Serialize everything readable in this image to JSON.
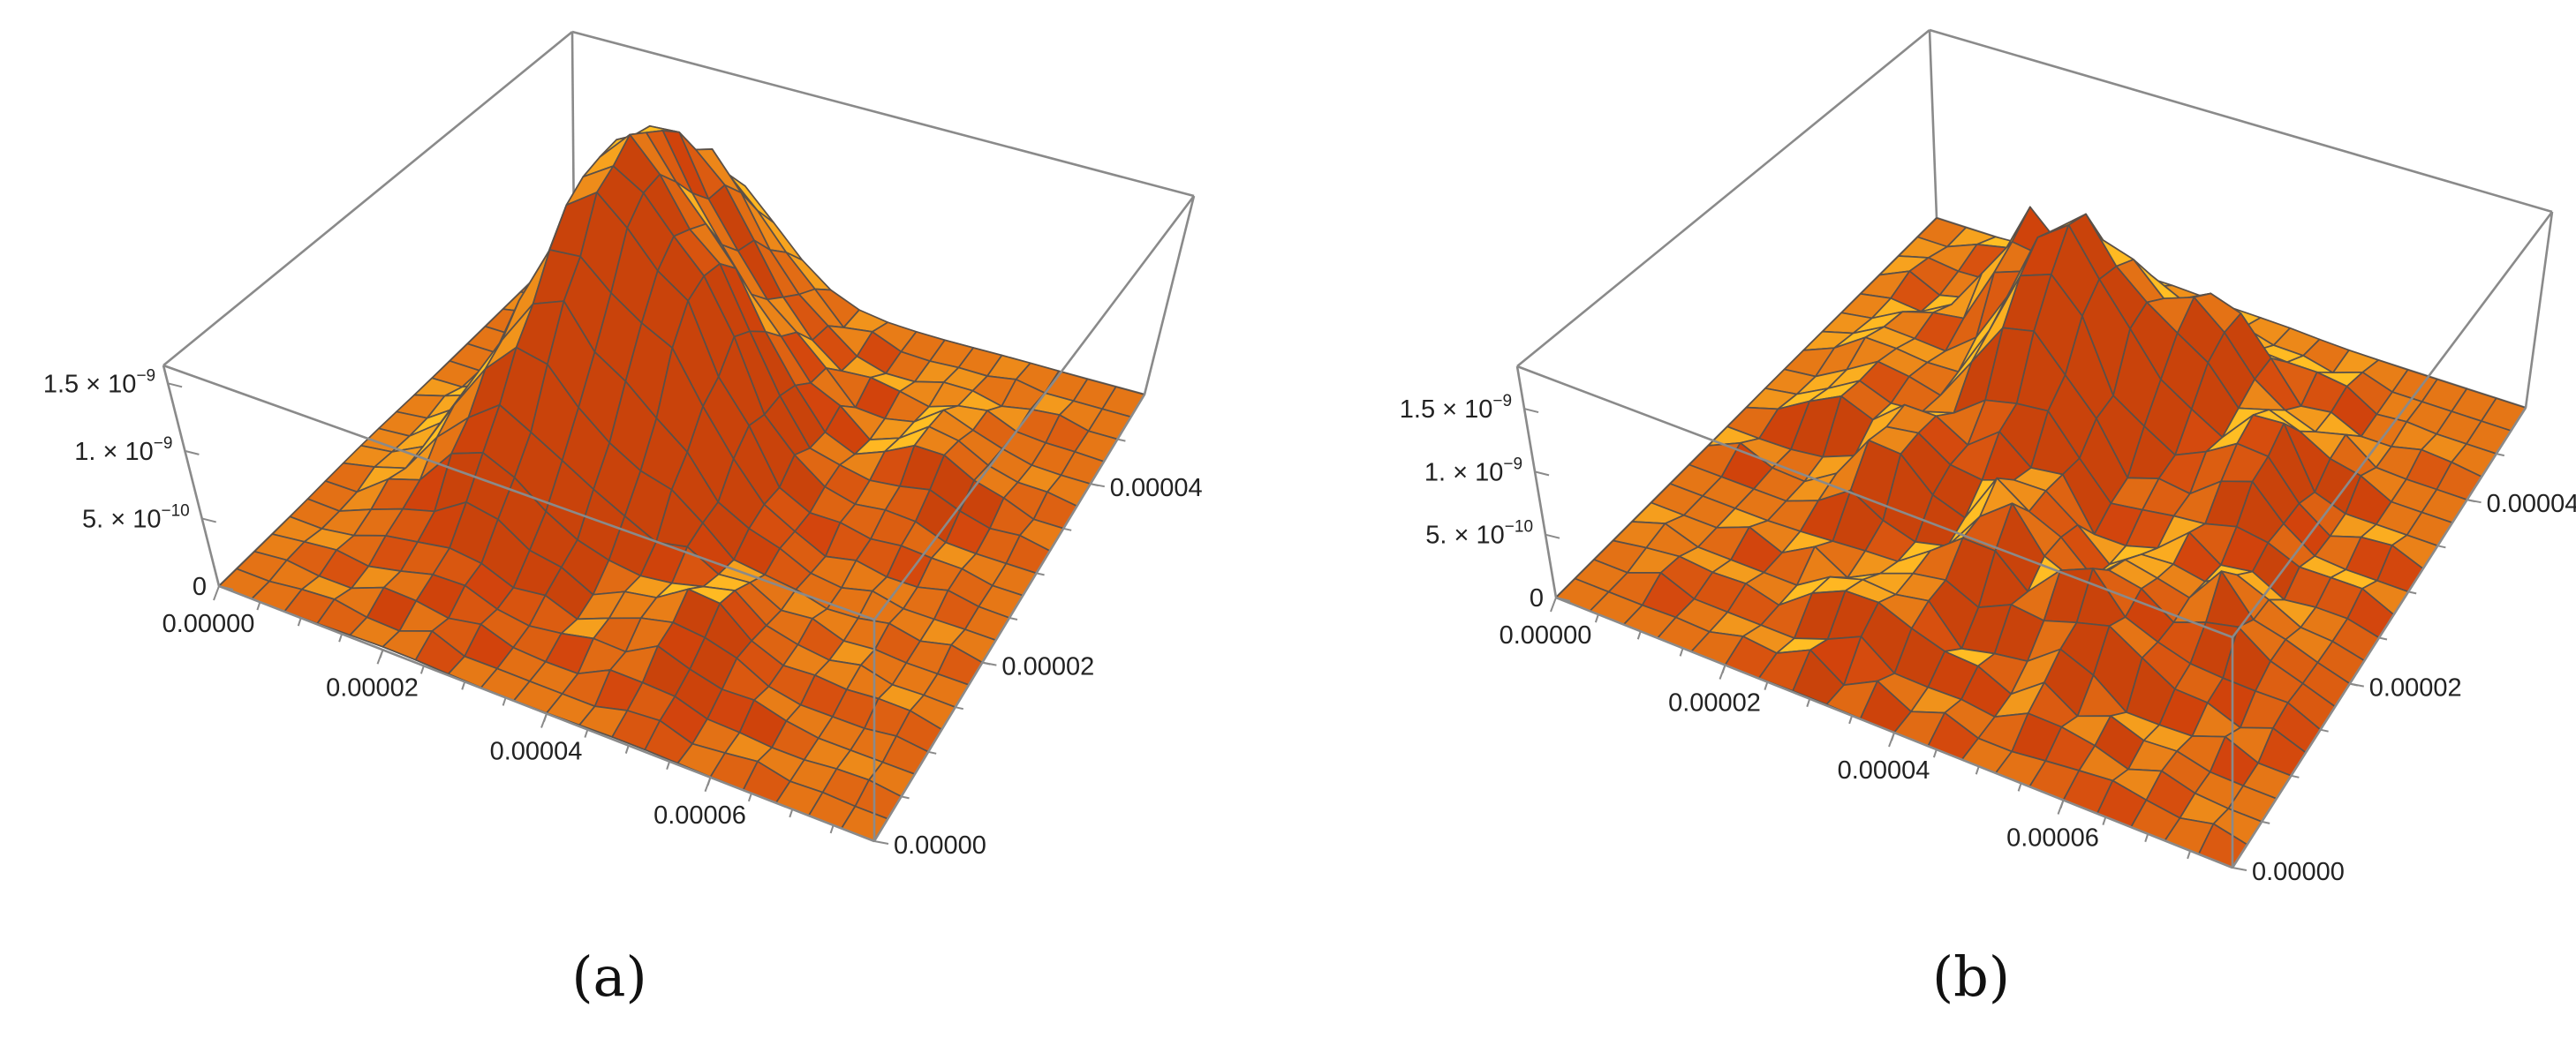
{
  "chart_data": [
    {
      "type": "surface3d",
      "panel_label": "(a)",
      "z_ticks": [
        {
          "base": "1.5 × 10",
          "exp": "−9"
        },
        {
          "base": "1. × 10",
          "exp": "−9"
        },
        {
          "base": "5. × 10",
          "exp": "−10"
        },
        {
          "base": "0",
          "exp": ""
        }
      ],
      "x_ticks": [
        "0.00000",
        "0.00002",
        "0.00004",
        "0.00006"
      ],
      "y_ticks": [
        "0.00000",
        "0.00002",
        "0.00004"
      ],
      "x_range": [
        0,
        8e-05
      ],
      "y_range": [
        0,
        5e-05
      ],
      "z_range": [
        0,
        1.6e-09
      ],
      "grid_resolution": [
        21,
        21
      ],
      "surface_color": "#f5a623",
      "peaks": [
        {
          "x": 2.1e-05,
          "y": 3.5e-05,
          "height": 1.6e-09,
          "sx": 5.5e-06,
          "sy": 1.2e-05
        },
        {
          "x": 3.3e-05,
          "y": 3e-05,
          "height": 1.45e-09,
          "sx": 8e-06,
          "sy": 7.5e-06
        },
        {
          "x": 3e-05,
          "y": 4.5e-05,
          "height": 4e-10,
          "sx": 5e-06,
          "sy": 4e-06
        },
        {
          "x": 1.5e-05,
          "y": 2e-05,
          "height": 3.5e-10,
          "sx": 6e-06,
          "sy": 5e-06
        },
        {
          "x": 5e-05,
          "y": 1.2e-05,
          "height": 3e-10,
          "sx": 6e-06,
          "sy": 5e-06
        },
        {
          "x": 6.2e-05,
          "y": 3.6e-05,
          "height": 2.5e-10,
          "sx": 5e-06,
          "sy": 5e-06
        }
      ]
    },
    {
      "type": "surface3d",
      "panel_label": "(b)",
      "z_ticks": [
        {
          "base": "1.5 × 10",
          "exp": "−9"
        },
        {
          "base": "1. × 10",
          "exp": "−9"
        },
        {
          "base": "5. × 10",
          "exp": "−10"
        },
        {
          "base": "0",
          "exp": ""
        }
      ],
      "x_ticks": [
        "0.00000",
        "0.00002",
        "0.00004",
        "0.00006"
      ],
      "y_ticks": [
        "0.00000",
        "0.00002",
        "0.00004"
      ],
      "x_range": [
        0,
        8e-05
      ],
      "y_range": [
        0,
        5e-05
      ],
      "z_range": [
        0,
        1.8e-09
      ],
      "grid_resolution": [
        21,
        21
      ],
      "surface_color": "#f5a623",
      "peaks": [
        {
          "x": 3.2e-05,
          "y": 3.5e-05,
          "height": 1.5e-09,
          "sx": 6e-06,
          "sy": 6e-06
        },
        {
          "x": 2e-05,
          "y": 4.2e-05,
          "height": 8e-10,
          "sx": 4e-06,
          "sy": 4e-06
        },
        {
          "x": 4.6e-05,
          "y": 4e-05,
          "height": 7e-10,
          "sx": 5e-06,
          "sy": 4e-06
        },
        {
          "x": 5.8e-05,
          "y": 3.3e-05,
          "height": 6e-10,
          "sx": 4e-06,
          "sy": 5e-06
        },
        {
          "x": 3.8e-05,
          "y": 1.8e-05,
          "height": 6e-10,
          "sx": 4e-06,
          "sy": 4e-06
        },
        {
          "x": 2.2e-05,
          "y": 2.2e-05,
          "height": 5e-10,
          "sx": 4e-06,
          "sy": 4e-06
        },
        {
          "x": 5.2e-05,
          "y": 1.5e-05,
          "height": 5e-10,
          "sx": 5e-06,
          "sy": 4e-06
        },
        {
          "x": 1.2e-05,
          "y": 3e-05,
          "height": 4e-10,
          "sx": 4e-06,
          "sy": 5e-06
        },
        {
          "x": 6.5e-05,
          "y": 2e-05,
          "height": 4e-10,
          "sx": 4e-06,
          "sy": 4e-06
        },
        {
          "x": 3e-05,
          "y": 8e-06,
          "height": 3.5e-10,
          "sx": 4e-06,
          "sy": 3e-06
        }
      ]
    }
  ]
}
